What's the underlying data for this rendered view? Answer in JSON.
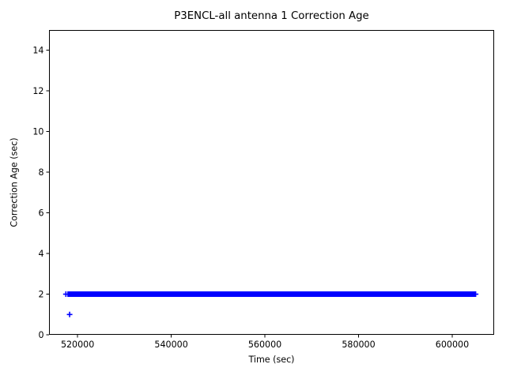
{
  "figure": {
    "background": "#ffffff",
    "text_color": "#000000",
    "spine_color": "#000000"
  },
  "chart_data": {
    "type": "scatter",
    "title": "P3ENCL-all antenna 1 Correction Age",
    "xlabel": "Time (sec)",
    "ylabel": "Correction Age (sec)",
    "xlim": [
      513900,
      608950
    ],
    "ylim": [
      0,
      15
    ],
    "xticks": [
      520000,
      540000,
      560000,
      580000,
      600000
    ],
    "yticks": [
      0,
      2,
      4,
      6,
      8,
      10,
      12,
      14
    ],
    "grid": false,
    "legend": null,
    "marker": "plus",
    "marker_color": "#0000ff",
    "series": [
      {
        "name": "antenna 1 correction age",
        "color": "#0000ff",
        "dense_bands": [
          {
            "y": 2,
            "x_start": 518400,
            "x_end": 604400,
            "note": "continuous overlapping plus markers"
          }
        ],
        "points": [
          {
            "x": 517500,
            "y": 2
          },
          {
            "x": 518300,
            "y": 1
          },
          {
            "x": 605000,
            "y": 2
          }
        ]
      }
    ]
  }
}
